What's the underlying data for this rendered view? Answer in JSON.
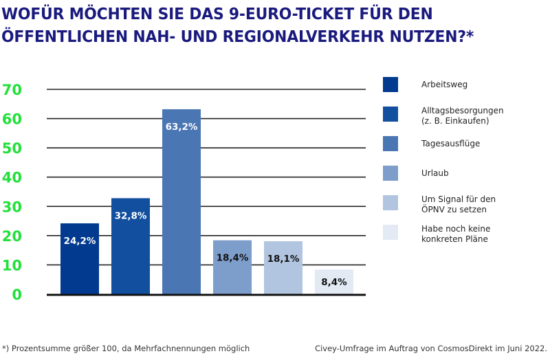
{
  "chart_data": {
    "type": "bar",
    "title": "WOFÜR MÖCHTEN SIE DAS 9-EURO-TICKET FÜR DEN ÖFFENTLICHEN NAH- UND REGIONALVERKEHR NUTZEN?*",
    "title_lines": [
      "WOFÜR MÖCHTEN SIE DAS 9-EURO-TICKET FÜR DEN",
      "ÖFFENTLICHEN NAH- UND REGIONALVERKEHR NUTZEN?*"
    ],
    "xlabel": "",
    "ylabel": "",
    "ylim": [
      0,
      70
    ],
    "yticks": [
      0,
      10,
      20,
      30,
      40,
      50,
      60,
      70
    ],
    "grid": true,
    "legend_position": "right",
    "categories": [
      "Arbeitsweg",
      "Alltagsbesorgungen (z. B. Einkaufen)",
      "Tagesausflüge",
      "Urlaub",
      "Um Signal für den ÖPNV zu setzen",
      "Habe noch keine konkreten Pläne"
    ],
    "values": [
      24.2,
      32.8,
      63.2,
      18.4,
      18.1,
      8.4
    ],
    "data_labels": [
      "24,2%",
      "32,8%",
      "63,2%",
      "18,4%",
      "18,1%",
      "8,4%"
    ],
    "colors": [
      "#023a8f",
      "#124f9e",
      "#4a76b4",
      "#7d9dcb",
      "#b2c5e0",
      "#e3eaf4"
    ],
    "label_colors": [
      "#ffffff",
      "#ffffff",
      "#ffffff",
      "#111111",
      "#111111",
      "#111111"
    ],
    "legend": [
      {
        "lines": [
          "Arbeitsweg"
        ]
      },
      {
        "lines": [
          "Alltagsbesorgungen",
          "(z. B. Einkaufen)"
        ]
      },
      {
        "lines": [
          "Tagesausflüge"
        ]
      },
      {
        "lines": [
          "Urlaub"
        ]
      },
      {
        "lines": [
          "Um Signal für den",
          "ÖPNV zu setzen"
        ]
      },
      {
        "lines": [
          "Habe noch keine",
          "konkreten Pläne"
        ]
      }
    ],
    "tick_color": "#22e03a"
  },
  "footnote": "*) Prozentsumme größer 100, da Mehrfachnennungen möglich",
  "source": "Civey-Umfrage im Auftrag von CosmosDirekt im Juni 2022."
}
